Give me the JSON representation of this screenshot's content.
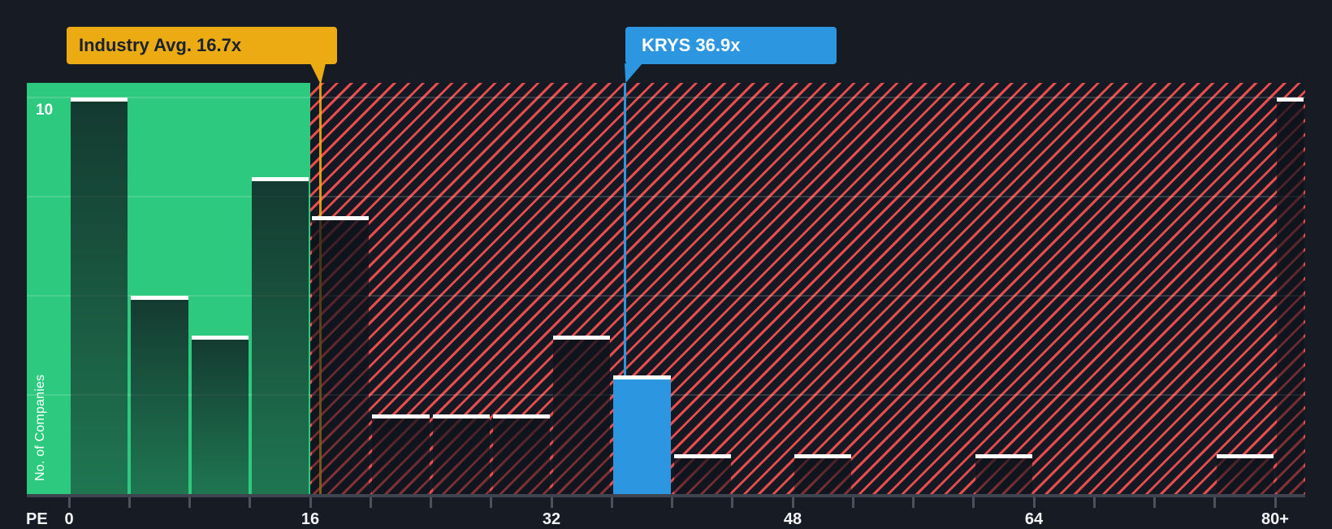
{
  "page": {
    "background": "#161b24"
  },
  "callouts": {
    "industry": {
      "label": "Industry Avg. 16.7x",
      "value": 16.7,
      "color": "#ecab13",
      "text_color": "#19222e"
    },
    "company": {
      "label": "KRYS 36.9x",
      "ticker": "KRYS",
      "value": 36.9,
      "color": "#2d96e0",
      "text_color": "#ffffff"
    }
  },
  "axes": {
    "x_title": "PE",
    "x_ticks": [
      {
        "label": "0",
        "pe": 0
      },
      {
        "label": "16",
        "pe": 16
      },
      {
        "label": "32",
        "pe": 32
      },
      {
        "label": "48",
        "pe": 48
      },
      {
        "label": "64",
        "pe": 64
      },
      {
        "label": "80+",
        "pe": 80
      }
    ],
    "y_tick": "10",
    "y_title": "No. of Companies"
  },
  "chart_data": {
    "type": "bar",
    "subtype": "histogram",
    "xlabel": "PE",
    "ylabel": "No. of Companies",
    "ylim": [
      0,
      10
    ],
    "y_gridlines": [
      2.5,
      5,
      7.5,
      10
    ],
    "y_tick_labels": [
      "10"
    ],
    "bin_width_pe": 4,
    "categories": [
      "0-4",
      "4-8",
      "8-12",
      "12-16",
      "16-20",
      "20-24",
      "24-28",
      "28-32",
      "32-36",
      "36-40",
      "40-44",
      "44-48",
      "48-52",
      "52-56",
      "56-60",
      "60-64",
      "64-68",
      "68-72",
      "72-76",
      "76-80",
      "80+"
    ],
    "values": [
      10,
      5,
      4,
      8,
      7,
      2,
      2,
      2,
      4,
      3,
      1,
      0,
      1,
      0,
      0,
      1,
      0,
      0,
      0,
      1,
      10
    ],
    "highlight_bin": "36-40",
    "highlight_color": "#2d96e0",
    "bar_cap_color": "#ffffff",
    "below_avg_region": {
      "from_pe": 0,
      "to_pe": 16,
      "color": "#2dc97e"
    },
    "above_avg_region": {
      "from_pe": 16,
      "to_pe": "80+",
      "pattern": "red-diagonal-hatch",
      "stripe_color": "#e84c4c",
      "background": "#141923"
    },
    "markers": [
      {
        "name": "industry-average",
        "pe": 16.7,
        "color": "#ecab13"
      },
      {
        "name": "company-krys",
        "pe": 36.9,
        "color": "#2d96e0"
      }
    ]
  }
}
